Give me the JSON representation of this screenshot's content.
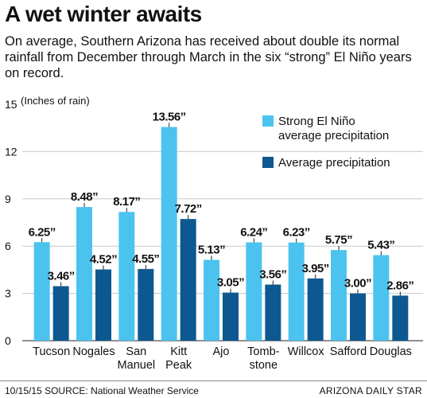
{
  "header": {
    "title": "A wet winter awaits",
    "subtitle": "On average, Southern Arizona has received about double its normal rainfall from December through March in the six “strong” El Niño years on record."
  },
  "footer": {
    "date": "10/15/15",
    "source": "SOURCE: National Weather Service",
    "publisher": "ARIZONA DAILY STAR"
  },
  "colors": {
    "strong": "#4cc3ef",
    "average": "#0d5891"
  },
  "chart_data": {
    "type": "bar",
    "ylabel": "(Inches of rain)",
    "ylim": [
      0,
      15
    ],
    "yticks": [
      0,
      3,
      6,
      9,
      12,
      15
    ],
    "grid": true,
    "legend_position": "top-right",
    "categories": [
      [
        "Tucson"
      ],
      [
        "Nogales"
      ],
      [
        "San",
        "Manuel"
      ],
      [
        "Kitt",
        "Peak"
      ],
      [
        "Ajo"
      ],
      [
        "Tomb-",
        "stone"
      ],
      [
        "Willcox"
      ],
      [
        "Safford"
      ],
      [
        "Douglas"
      ]
    ],
    "series": [
      {
        "name": "Strong El Niño average precipitation",
        "legend_lines": [
          "Strong El Niño",
          "average precipitation"
        ],
        "values": [
          6.25,
          8.48,
          8.17,
          13.56,
          5.13,
          6.24,
          6.23,
          5.75,
          5.43
        ],
        "labels": [
          "6.25”",
          "8.48”",
          "8.17”",
          "13.56”",
          "5.13”",
          "6.24”",
          "6.23”",
          "5.75”",
          "5.43”"
        ]
      },
      {
        "name": "Average precipitation",
        "legend_lines": [
          "Average precipitation"
        ],
        "values": [
          3.46,
          4.52,
          4.55,
          7.72,
          3.05,
          3.56,
          3.95,
          3.0,
          2.86
        ],
        "labels": [
          "3.46”",
          "4.52”",
          "4.55”",
          "7.72”",
          "3.05”",
          "3.56”",
          "3.95”",
          "3.00”",
          "2.86”"
        ]
      }
    ]
  }
}
